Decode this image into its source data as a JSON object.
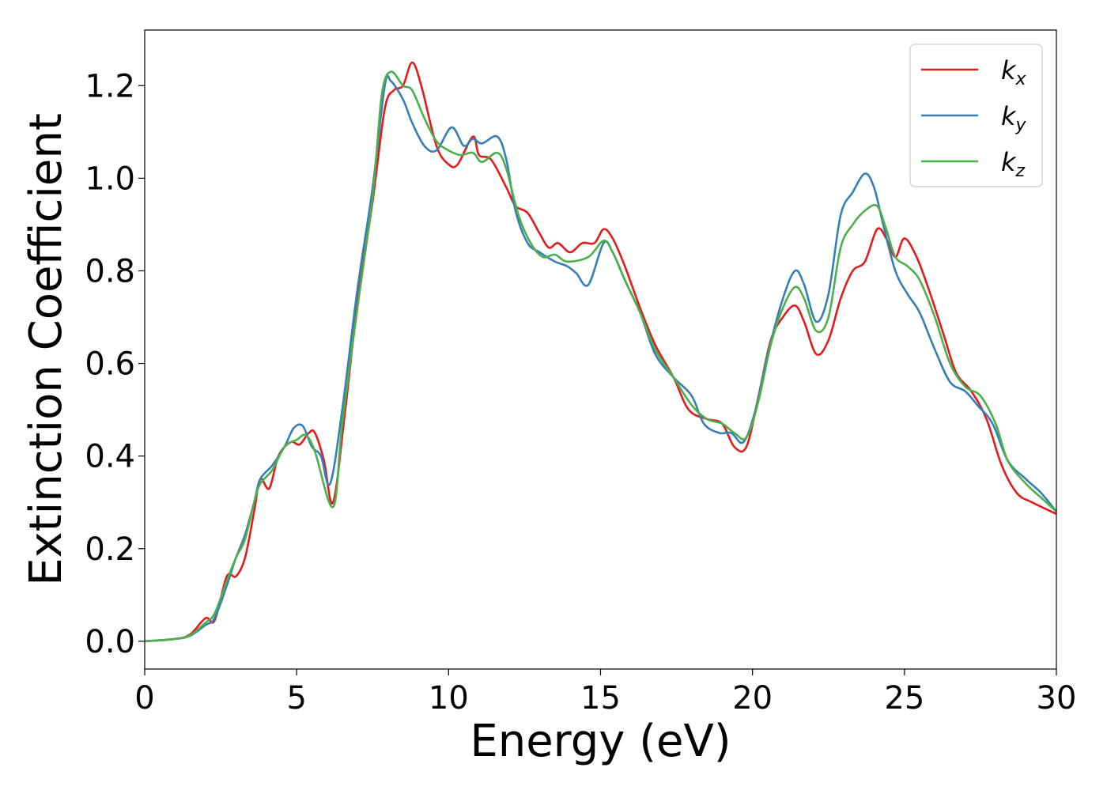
{
  "chart_data": {
    "type": "line",
    "title": "",
    "xlabel": "Energy (eV)",
    "ylabel": "Extinction Coefficient",
    "xlim": [
      0,
      30
    ],
    "ylim": [
      -0.06,
      1.32
    ],
    "xticks": [
      0,
      5,
      10,
      15,
      20,
      25,
      30
    ],
    "xtick_labels": [
      "0",
      "5",
      "10",
      "15",
      "20",
      "25",
      "30"
    ],
    "yticks": [
      0.0,
      0.2,
      0.4,
      0.6,
      0.8,
      1.0,
      1.2
    ],
    "ytick_labels": [
      "0.0",
      "0.2",
      "0.4",
      "0.6",
      "0.8",
      "1.0",
      "1.2"
    ],
    "grid": false,
    "legend_position": "top-right",
    "series": [
      {
        "name": "k",
        "subscript": "x",
        "color": "#e41a1c",
        "points": [
          [
            0,
            0
          ],
          [
            1,
            0.005
          ],
          [
            1.5,
            0.015
          ],
          [
            2,
            0.05
          ],
          [
            2.3,
            0.045
          ],
          [
            2.7,
            0.14
          ],
          [
            3,
            0.14
          ],
          [
            3.3,
            0.18
          ],
          [
            3.6,
            0.28
          ],
          [
            3.8,
            0.35
          ],
          [
            4.1,
            0.33
          ],
          [
            4.4,
            0.4
          ],
          [
            4.8,
            0.43
          ],
          [
            5.1,
            0.425
          ],
          [
            5.4,
            0.45
          ],
          [
            5.6,
            0.45
          ],
          [
            5.9,
            0.39
          ],
          [
            6.2,
            0.3
          ],
          [
            6.6,
            0.5
          ],
          [
            7,
            0.73
          ],
          [
            7.5,
            0.95
          ],
          [
            7.9,
            1.15
          ],
          [
            8.2,
            1.19
          ],
          [
            8.5,
            1.2
          ],
          [
            8.8,
            1.25
          ],
          [
            9.1,
            1.2
          ],
          [
            9.6,
            1.07
          ],
          [
            10,
            1.03
          ],
          [
            10.3,
            1.03
          ],
          [
            10.8,
            1.09
          ],
          [
            11,
            1.05
          ],
          [
            11.4,
            1.04
          ],
          [
            11.9,
            0.98
          ],
          [
            12.2,
            0.94
          ],
          [
            12.6,
            0.925
          ],
          [
            13,
            0.88
          ],
          [
            13.3,
            0.85
          ],
          [
            13.6,
            0.86
          ],
          [
            14,
            0.84
          ],
          [
            14.4,
            0.86
          ],
          [
            14.8,
            0.86
          ],
          [
            15.1,
            0.89
          ],
          [
            15.4,
            0.87
          ],
          [
            15.8,
            0.81
          ],
          [
            16.3,
            0.72
          ],
          [
            16.8,
            0.64
          ],
          [
            17.4,
            0.57
          ],
          [
            17.9,
            0.5
          ],
          [
            18.5,
            0.48
          ],
          [
            19,
            0.47
          ],
          [
            19.4,
            0.42
          ],
          [
            19.8,
            0.42
          ],
          [
            20.2,
            0.53
          ],
          [
            20.6,
            0.65
          ],
          [
            21,
            0.7
          ],
          [
            21.4,
            0.725
          ],
          [
            21.7,
            0.69
          ],
          [
            22.1,
            0.62
          ],
          [
            22.5,
            0.65
          ],
          [
            22.9,
            0.74
          ],
          [
            23.3,
            0.8
          ],
          [
            23.7,
            0.82
          ],
          [
            24.1,
            0.89
          ],
          [
            24.4,
            0.87
          ],
          [
            24.7,
            0.83
          ],
          [
            25,
            0.87
          ],
          [
            25.4,
            0.83
          ],
          [
            25.8,
            0.76
          ],
          [
            26.3,
            0.66
          ],
          [
            26.7,
            0.58
          ],
          [
            27.2,
            0.54
          ],
          [
            27.7,
            0.48
          ],
          [
            28.2,
            0.38
          ],
          [
            28.7,
            0.32
          ],
          [
            29.2,
            0.3
          ],
          [
            30,
            0.275
          ]
        ]
      },
      {
        "name": "k",
        "subscript": "y",
        "color": "#377eb8",
        "points": [
          [
            0,
            0
          ],
          [
            1,
            0.005
          ],
          [
            1.5,
            0.012
          ],
          [
            2,
            0.035
          ],
          [
            2.3,
            0.05
          ],
          [
            2.7,
            0.12
          ],
          [
            3,
            0.18
          ],
          [
            3.3,
            0.23
          ],
          [
            3.6,
            0.3
          ],
          [
            3.8,
            0.35
          ],
          [
            4.2,
            0.38
          ],
          [
            4.6,
            0.42
          ],
          [
            4.9,
            0.46
          ],
          [
            5.2,
            0.465
          ],
          [
            5.5,
            0.42
          ],
          [
            5.8,
            0.4
          ],
          [
            6.1,
            0.34
          ],
          [
            6.5,
            0.5
          ],
          [
            7,
            0.76
          ],
          [
            7.5,
            0.98
          ],
          [
            7.9,
            1.2
          ],
          [
            8.1,
            1.21
          ],
          [
            8.5,
            1.17
          ],
          [
            8.8,
            1.12
          ],
          [
            9.2,
            1.07
          ],
          [
            9.6,
            1.06
          ],
          [
            10.1,
            1.11
          ],
          [
            10.5,
            1.07
          ],
          [
            10.8,
            1.085
          ],
          [
            11.1,
            1.075
          ],
          [
            11.6,
            1.09
          ],
          [
            11.9,
            1.04
          ],
          [
            12.2,
            0.93
          ],
          [
            12.6,
            0.86
          ],
          [
            13,
            0.84
          ],
          [
            13.5,
            0.82
          ],
          [
            13.9,
            0.81
          ],
          [
            14.2,
            0.795
          ],
          [
            14.6,
            0.77
          ],
          [
            15.1,
            0.86
          ],
          [
            15.4,
            0.84
          ],
          [
            15.8,
            0.78
          ],
          [
            16.3,
            0.71
          ],
          [
            16.8,
            0.62
          ],
          [
            17.4,
            0.57
          ],
          [
            18,
            0.53
          ],
          [
            18.4,
            0.47
          ],
          [
            18.9,
            0.45
          ],
          [
            19.3,
            0.45
          ],
          [
            19.7,
            0.43
          ],
          [
            20.1,
            0.5
          ],
          [
            20.5,
            0.62
          ],
          [
            21,
            0.74
          ],
          [
            21.4,
            0.8
          ],
          [
            21.7,
            0.77
          ],
          [
            22.1,
            0.69
          ],
          [
            22.5,
            0.75
          ],
          [
            22.9,
            0.92
          ],
          [
            23.3,
            0.97
          ],
          [
            23.7,
            1.01
          ],
          [
            24,
            0.98
          ],
          [
            24.3,
            0.9
          ],
          [
            24.7,
            0.8
          ],
          [
            25.1,
            0.75
          ],
          [
            25.5,
            0.71
          ],
          [
            26,
            0.63
          ],
          [
            26.5,
            0.56
          ],
          [
            27,
            0.54
          ],
          [
            27.4,
            0.51
          ],
          [
            27.9,
            0.47
          ],
          [
            28.4,
            0.39
          ],
          [
            29,
            0.35
          ],
          [
            29.5,
            0.32
          ],
          [
            30,
            0.28
          ]
        ]
      },
      {
        "name": "k",
        "subscript": "z",
        "color": "#4daf4a",
        "points": [
          [
            0,
            0
          ],
          [
            1,
            0.005
          ],
          [
            1.5,
            0.013
          ],
          [
            2,
            0.04
          ],
          [
            2.3,
            0.06
          ],
          [
            2.7,
            0.13
          ],
          [
            3,
            0.18
          ],
          [
            3.3,
            0.22
          ],
          [
            3.6,
            0.3
          ],
          [
            3.8,
            0.34
          ],
          [
            4.2,
            0.37
          ],
          [
            4.6,
            0.42
          ],
          [
            5,
            0.435
          ],
          [
            5.3,
            0.445
          ],
          [
            5.6,
            0.41
          ],
          [
            6.2,
            0.29
          ],
          [
            6.5,
            0.47
          ],
          [
            7,
            0.72
          ],
          [
            7.5,
            0.96
          ],
          [
            7.8,
            1.18
          ],
          [
            8.1,
            1.23
          ],
          [
            8.5,
            1.2
          ],
          [
            8.8,
            1.19
          ],
          [
            9.2,
            1.13
          ],
          [
            9.6,
            1.08
          ],
          [
            10,
            1.06
          ],
          [
            10.4,
            1.05
          ],
          [
            10.8,
            1.055
          ],
          [
            11.1,
            1.035
          ],
          [
            11.6,
            1.055
          ],
          [
            11.9,
            1.02
          ],
          [
            12.3,
            0.92
          ],
          [
            12.7,
            0.86
          ],
          [
            13.1,
            0.83
          ],
          [
            13.5,
            0.835
          ],
          [
            13.9,
            0.82
          ],
          [
            14.6,
            0.83
          ],
          [
            15.1,
            0.865
          ],
          [
            15.4,
            0.84
          ],
          [
            15.8,
            0.78
          ],
          [
            16.3,
            0.71
          ],
          [
            16.8,
            0.63
          ],
          [
            17.4,
            0.57
          ],
          [
            18,
            0.51
          ],
          [
            18.5,
            0.48
          ],
          [
            19,
            0.47
          ],
          [
            19.4,
            0.45
          ],
          [
            19.8,
            0.44
          ],
          [
            20.2,
            0.52
          ],
          [
            20.6,
            0.64
          ],
          [
            21,
            0.72
          ],
          [
            21.4,
            0.765
          ],
          [
            21.7,
            0.74
          ],
          [
            22.1,
            0.67
          ],
          [
            22.5,
            0.7
          ],
          [
            22.9,
            0.85
          ],
          [
            23.3,
            0.9
          ],
          [
            23.7,
            0.93
          ],
          [
            24.1,
            0.94
          ],
          [
            24.4,
            0.89
          ],
          [
            24.7,
            0.83
          ],
          [
            25.1,
            0.81
          ],
          [
            25.5,
            0.78
          ],
          [
            26,
            0.7
          ],
          [
            26.5,
            0.6
          ],
          [
            27,
            0.55
          ],
          [
            27.5,
            0.53
          ],
          [
            28,
            0.47
          ],
          [
            28.4,
            0.39
          ],
          [
            29,
            0.34
          ],
          [
            29.5,
            0.31
          ],
          [
            30,
            0.28
          ]
        ]
      }
    ]
  }
}
